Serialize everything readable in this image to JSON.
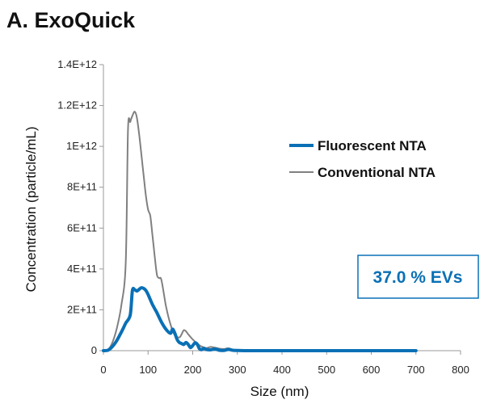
{
  "chart_data": {
    "type": "line",
    "title": "A. ExoQuick",
    "xlabel": "Size (nm)",
    "ylabel": "Concentration (particle/mL)",
    "xlim": [
      0,
      800
    ],
    "ylim": [
      0,
      1400000000000.0
    ],
    "xticks": [
      0,
      100,
      200,
      300,
      400,
      500,
      600,
      700,
      800
    ],
    "xtick_labels": [
      "0",
      "100",
      "200",
      "300",
      "400",
      "500",
      "600",
      "700",
      "800"
    ],
    "yticks": [
      0,
      200000000000.0,
      400000000000.0,
      600000000000.0,
      800000000000.0,
      1000000000000.0,
      1200000000000.0,
      1400000000000.0
    ],
    "ytick_labels": [
      "0",
      "2E+11",
      "4E+11",
      "6E+11",
      "8E+11",
      "1E+12",
      "1.2E+12",
      "1.4E+12"
    ],
    "grid": false,
    "legend_position": "top-right",
    "series": [
      {
        "name": "Fluorescent NTA",
        "color": "#0a70b5",
        "x": [
          0,
          10,
          20,
          30,
          40,
          50,
          60,
          65,
          70,
          75,
          80,
          85,
          90,
          95,
          100,
          105,
          110,
          115,
          120,
          130,
          140,
          150,
          155,
          160,
          165,
          170,
          175,
          180,
          185,
          190,
          195,
          200,
          205,
          210,
          215,
          220,
          225,
          230,
          240,
          250,
          260,
          270,
          280,
          290,
          300,
          320,
          350,
          400,
          500,
          600,
          700
        ],
        "values": [
          0,
          2000000000.0,
          20000000000.0,
          50000000000.0,
          90000000000.0,
          135000000000.0,
          175000000000.0,
          295000000000.0,
          298000000000.0,
          292000000000.0,
          300000000000.0,
          308000000000.0,
          305000000000.0,
          295000000000.0,
          275000000000.0,
          250000000000.0,
          225000000000.0,
          205000000000.0,
          185000000000.0,
          140000000000.0,
          105000000000.0,
          85000000000.0,
          105000000000.0,
          85000000000.0,
          55000000000.0,
          40000000000.0,
          35000000000.0,
          30000000000.0,
          40000000000.0,
          30000000000.0,
          15000000000.0,
          25000000000.0,
          38000000000.0,
          32000000000.0,
          10000000000.0,
          5000000000.0,
          12000000000.0,
          6000000000.0,
          4000000000.0,
          8000000000.0,
          2000000000.0,
          1000000000.0,
          6000000000.0,
          2000000000.0,
          1000000000.0,
          0,
          0,
          0,
          0,
          0,
          0
        ]
      },
      {
        "name": "Conventional NTA",
        "color": "#808080",
        "x": [
          0,
          10,
          20,
          30,
          40,
          50,
          55,
          60,
          65,
          70,
          75,
          80,
          85,
          90,
          95,
          100,
          105,
          110,
          115,
          120,
          125,
          130,
          140,
          150,
          160,
          170,
          175,
          180,
          185,
          190,
          200,
          210,
          220,
          230,
          240,
          250,
          260,
          270,
          280,
          290,
          300,
          320,
          350,
          400,
          500,
          600,
          700
        ],
        "values": [
          0,
          3000000000.0,
          40000000000.0,
          110000000000.0,
          220000000000.0,
          430000000000.0,
          1080000000000.0,
          1120000000000.0,
          1150000000000.0,
          1170000000000.0,
          1140000000000.0,
          1060000000000.0,
          960000000000.0,
          860000000000.0,
          760000000000.0,
          690000000000.0,
          660000000000.0,
          560000000000.0,
          460000000000.0,
          370000000000.0,
          355000000000.0,
          345000000000.0,
          220000000000.0,
          130000000000.0,
          75000000000.0,
          65000000000.0,
          80000000000.0,
          100000000000.0,
          95000000000.0,
          80000000000.0,
          55000000000.0,
          35000000000.0,
          20000000000.0,
          13000000000.0,
          18000000000.0,
          15000000000.0,
          10000000000.0,
          8000000000.0,
          12000000000.0,
          5000000000.0,
          3000000000.0,
          1000000000.0,
          0,
          0,
          0,
          0,
          0
        ]
      }
    ],
    "annotations": [
      {
        "text": "37.0 % EVs",
        "color": "#0a70b5"
      }
    ]
  }
}
